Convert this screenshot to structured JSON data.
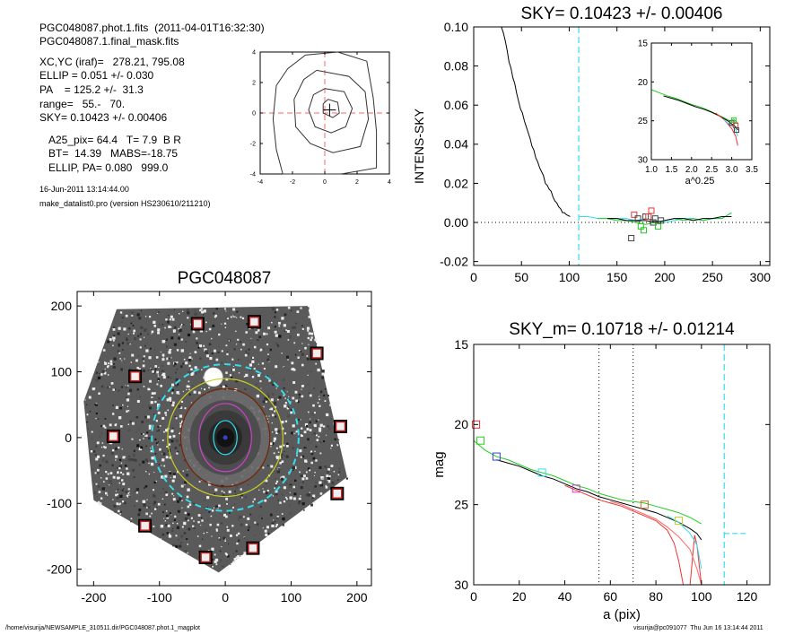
{
  "header": {
    "file_line": "PGC048087.phot.1.fits  (2011-04-01T16:32:30)",
    "mask_line": "PGC048087.1.final_mask.fits",
    "xcyc": "XC,YC (iraf)=   278.21, 795.08",
    "ellip": "ELLIP = 0.051 +/- 0.030",
    "pa": "PA    = 125.2 +/-  31.3",
    "range": "range=   55.-   70.",
    "sky": "SKY= 0.10423 +/- 0.00406",
    "a25": "A25_pix= 64.4   T= 7.9  B R",
    "bt": "BT=  14.39   MABS=-18.75",
    "ellip_pa": "ELLIP, PA= 0.080   999.0",
    "date": "16-Jun-2011 13:14:44.00",
    "program": "make_datalist0.pro (version HS230610/211210)"
  },
  "footer": {
    "path": "/home/visurija/NEWSAMPLE_310511.dir/PGC048087.phot.1_magplot",
    "user": "visurija@pc091077  Thu Jun 16 13:14:44 2011"
  },
  "colors": {
    "black": "#000000",
    "cyan": "#33ddee",
    "green": "#22cc22",
    "red": "#ee3333",
    "pink": "#ff6666",
    "magenta": "#cc44cc",
    "blue": "#3344cc",
    "orange": "#cc6633",
    "yellow": "#cccc22",
    "brown": "#772200",
    "gray": "#444444"
  },
  "chart_data": [
    {
      "id": "contour",
      "type": "contour",
      "xlim": [
        -4,
        4
      ],
      "ylim": [
        -4,
        4
      ],
      "xticks": [
        -4,
        -2,
        0,
        2,
        4
      ],
      "yticks": [
        -4,
        -2,
        0,
        2,
        4
      ],
      "center": [
        0.3,
        0.2
      ],
      "contours": [
        [
          [
            -1.2,
            3.8
          ],
          [
            0.8,
            4.0
          ],
          [
            2.6,
            3.4
          ],
          [
            3.0,
            1.0
          ],
          [
            3.2,
            -1.2
          ],
          [
            3.2,
            -3.6
          ],
          [
            1.0,
            -4.0
          ],
          [
            -2.6,
            -4.0
          ],
          [
            -3.0,
            -2.4
          ],
          [
            -3.2,
            -0.4
          ],
          [
            -3.0,
            1.8
          ],
          [
            -2.3,
            2.9
          ],
          [
            -1.2,
            3.8
          ]
        ],
        [
          [
            -0.5,
            2.8
          ],
          [
            1.5,
            2.4
          ],
          [
            2.5,
            1.4
          ],
          [
            2.7,
            -0.4
          ],
          [
            2.2,
            -2.2
          ],
          [
            0.5,
            -2.6
          ],
          [
            -0.9,
            -2.0
          ],
          [
            -1.8,
            -0.9
          ],
          [
            -1.9,
            0.9
          ],
          [
            -1.3,
            2.2
          ],
          [
            -0.5,
            2.8
          ]
        ],
        [
          [
            0.0,
            1.6
          ],
          [
            1.2,
            1.4
          ],
          [
            1.7,
            0.3
          ],
          [
            1.3,
            -0.9
          ],
          [
            0.4,
            -1.3
          ],
          [
            -0.6,
            -0.9
          ],
          [
            -1.0,
            0.2
          ],
          [
            -0.7,
            1.2
          ],
          [
            0.0,
            1.6
          ]
        ],
        [
          [
            0.2,
            0.9
          ],
          [
            0.8,
            0.7
          ],
          [
            0.9,
            0.0
          ],
          [
            0.5,
            -0.3
          ],
          [
            -0.1,
            0.0
          ],
          [
            -0.1,
            0.6
          ],
          [
            0.2,
            0.9
          ]
        ]
      ]
    },
    {
      "id": "sky",
      "type": "line",
      "title": "SKY= 0.10423 +/- 0.00406",
      "xlabel": "",
      "ylabel": "INTENS-SKY",
      "xlim": [
        0,
        310
      ],
      "ylim": [
        -0.022,
        0.1
      ],
      "xticks": [
        0,
        50,
        100,
        150,
        200,
        250,
        300
      ],
      "yticks": [
        -0.02,
        0.0,
        0.02,
        0.04,
        0.06,
        0.08,
        0.1
      ],
      "ytick_labels": [
        "-0.02",
        "0.00",
        "0.02",
        "0.04",
        "0.06",
        "0.08",
        "0.10"
      ],
      "vline_x": 110,
      "series": [
        {
          "color": "black",
          "x": [
            29,
            31,
            33,
            35,
            37,
            39,
            41,
            43,
            45,
            47,
            49,
            51,
            53,
            55,
            57,
            59,
            61,
            63,
            65,
            67,
            69,
            71,
            73,
            75,
            77,
            79,
            81,
            83,
            85,
            87,
            89,
            91,
            93,
            95,
            97,
            99,
            101
          ],
          "y": [
            0.1,
            0.097,
            0.093,
            0.088,
            0.082,
            0.079,
            0.074,
            0.071,
            0.066,
            0.062,
            0.058,
            0.056,
            0.052,
            0.049,
            0.046,
            0.043,
            0.039,
            0.037,
            0.033,
            0.031,
            0.028,
            0.026,
            0.024,
            0.02,
            0.019,
            0.017,
            0.016,
            0.013,
            0.011,
            0.01,
            0.008,
            0.007,
            0.005,
            0.005,
            0.004,
            0.0035,
            0.003
          ]
        },
        {
          "color": "cyan",
          "x": [
            110,
            120,
            130,
            140,
            150,
            160,
            170,
            180,
            190,
            200,
            210,
            220,
            230,
            240,
            250,
            260,
            270
          ],
          "y": [
            0.003,
            0.003,
            0.002,
            0.002,
            0.002,
            0.002,
            0.001,
            0.002,
            0.001,
            0.0,
            0.001,
            0.002,
            0.002,
            0.001,
            0.002,
            0.002,
            0.005
          ]
        },
        {
          "color": "green",
          "x": [
            130,
            140,
            150,
            160,
            170,
            180,
            190,
            200,
            210,
            220,
            230,
            240,
            250,
            260,
            270
          ],
          "y": [
            0.002,
            0.002,
            0.001,
            0.001,
            0.0,
            -0.001,
            0.0,
            0.001,
            0.002,
            0.001,
            0.002,
            0.001,
            0.002,
            0.002,
            0.005
          ]
        },
        {
          "color": "black",
          "x": [
            140,
            150,
            160,
            170,
            180,
            190,
            200,
            210,
            220,
            230,
            240,
            250,
            260,
            270
          ],
          "y": [
            0.002,
            0.002,
            0.001,
            0.001,
            0.001,
            0.0,
            0.001,
            0.002,
            0.002,
            0.001,
            0.002,
            0.002,
            0.003,
            0.003
          ]
        }
      ],
      "squares": [
        {
          "x": 165,
          "y": -0.008,
          "color": "gray"
        },
        {
          "x": 168,
          "y": 0.004,
          "color": "red"
        },
        {
          "x": 172,
          "y": 0.002,
          "color": "gray"
        },
        {
          "x": 175,
          "y": -0.002,
          "color": "green"
        },
        {
          "x": 178,
          "y": -0.004,
          "color": "green"
        },
        {
          "x": 180,
          "y": 0.003,
          "color": "gray"
        },
        {
          "x": 183,
          "y": 0.003,
          "color": "red"
        },
        {
          "x": 186,
          "y": 0.006,
          "color": "red"
        },
        {
          "x": 188,
          "y": 0.0,
          "color": "gray"
        },
        {
          "x": 190,
          "y": 0.002,
          "color": "gray"
        },
        {
          "x": 193,
          "y": -0.002,
          "color": "green"
        },
        {
          "x": 196,
          "y": 0.001,
          "color": "gray"
        }
      ]
    },
    {
      "id": "inset",
      "type": "line",
      "xlabel": "a^0.25",
      "xlim": [
        1.0,
        3.5
      ],
      "ylim": [
        30,
        15
      ],
      "xticks": [
        1.0,
        1.5,
        2.0,
        2.5,
        3.0,
        3.5
      ],
      "xtick_labels": [
        "1.0",
        "1.5",
        "2.0",
        "2.5",
        "3.0",
        "3.5"
      ],
      "yticks": [
        15,
        20,
        25,
        30
      ],
      "series": [
        {
          "color": "green",
          "x": [
            1.0,
            1.2,
            1.4,
            1.6,
            1.8,
            2.0,
            2.2,
            2.4,
            2.6,
            2.8,
            2.95,
            3.05,
            3.15
          ],
          "y": [
            21.0,
            21.4,
            21.8,
            22.1,
            22.5,
            22.9,
            23.2,
            23.6,
            24.1,
            24.6,
            25.0,
            24.8,
            25.3
          ]
        },
        {
          "color": "black",
          "x": [
            1.3,
            1.5,
            1.7,
            1.9,
            2.1,
            2.3,
            2.5,
            2.7,
            2.9,
            3.0,
            3.1,
            3.15
          ],
          "y": [
            21.8,
            22.1,
            22.4,
            22.8,
            23.2,
            23.5,
            23.9,
            24.4,
            25.0,
            25.4,
            25.8,
            26.2
          ]
        },
        {
          "color": "red",
          "x": [
            2.6,
            2.8,
            2.9,
            3.0,
            3.1,
            3.15
          ],
          "y": [
            24.0,
            24.8,
            25.4,
            26.0,
            27.0,
            28.2
          ]
        },
        {
          "color": "cyan",
          "x": [
            2.8,
            2.9,
            3.0,
            3.1,
            3.15
          ],
          "y": [
            24.8,
            25.3,
            25.6,
            26.2,
            27.0
          ]
        }
      ],
      "squares": [
        {
          "x": 3.0,
          "y": 25.3,
          "color": "gray"
        },
        {
          "x": 3.05,
          "y": 24.9,
          "color": "green"
        },
        {
          "x": 3.1,
          "y": 25.6,
          "color": "red"
        },
        {
          "x": 3.12,
          "y": 26.2,
          "color": "gray"
        }
      ]
    },
    {
      "id": "image",
      "type": "image",
      "title": "PGC048087",
      "xlim": [
        -225,
        222
      ],
      "ylim": [
        -225,
        222
      ],
      "xticks": [
        -200,
        -100,
        0,
        100,
        200
      ],
      "yticks": [
        -200,
        -100,
        0,
        100,
        200
      ],
      "field_corners": [
        [
          -165,
          195
        ],
        [
          125,
          200
        ],
        [
          185,
          -60
        ],
        [
          -10,
          -205
        ],
        [
          -200,
          -95
        ],
        [
          -215,
          55
        ]
      ],
      "ellipses": [
        {
          "rx": 18,
          "ry": 26,
          "color": "cyan"
        },
        {
          "rx": 40,
          "ry": 52,
          "color": "magenta"
        },
        {
          "rx": 68,
          "ry": 75,
          "color": "brown"
        },
        {
          "rx": 88,
          "ry": 90,
          "color": "yellow"
        },
        {
          "rx": 112,
          "ry": 112,
          "color": "cyan",
          "dashed": true
        }
      ],
      "mask_squares": [
        [
          -42,
          173
        ],
        [
          44,
          176
        ],
        [
          -137,
          93
        ],
        [
          139,
          128
        ],
        [
          -170,
          2
        ],
        [
          175,
          17
        ],
        [
          -122,
          -134
        ],
        [
          170,
          -85
        ],
        [
          -30,
          -182
        ],
        [
          42,
          -168
        ]
      ],
      "circle": {
        "x": -18,
        "y": 92,
        "r": 14
      }
    },
    {
      "id": "mag",
      "type": "line",
      "title": "SKY_m=  0.10718 +/- 0.01214",
      "xlabel": "a (pix)",
      "ylabel": "mag",
      "xlim": [
        0,
        130
      ],
      "ylim": [
        30,
        15
      ],
      "xticks": [
        0,
        20,
        40,
        60,
        80,
        100,
        120
      ],
      "yticks": [
        15,
        20,
        25,
        30
      ],
      "vlines_dotted": [
        55,
        70
      ],
      "vline_x": 110,
      "hline_dashed": {
        "x": [
          110,
          120
        ],
        "y": 26.8
      },
      "series": [
        {
          "color": "green",
          "x": [
            0,
            5,
            10,
            15,
            20,
            25,
            30,
            35,
            40,
            45,
            50,
            55,
            60,
            65,
            70,
            75,
            80,
            85,
            90,
            95,
            100
          ],
          "y": [
            21.0,
            21.6,
            22.0,
            22.2,
            22.5,
            22.8,
            23.0,
            23.2,
            23.5,
            23.8,
            24.0,
            24.3,
            24.5,
            24.7,
            24.8,
            24.9,
            25.1,
            25.3,
            25.5,
            25.8,
            26.2
          ]
        },
        {
          "color": "black",
          "x": [
            10,
            15,
            20,
            25,
            30,
            35,
            40,
            45,
            50,
            55,
            60,
            65,
            70,
            75,
            80,
            85,
            90,
            95,
            98,
            100
          ],
          "y": [
            22.2,
            22.4,
            22.6,
            22.9,
            23.2,
            23.4,
            23.7,
            24.0,
            24.2,
            24.5,
            24.7,
            24.9,
            25.1,
            25.3,
            25.5,
            25.8,
            26.1,
            26.5,
            26.8,
            27.2
          ]
        },
        {
          "color": "red",
          "x": [
            40,
            45,
            50,
            55,
            60,
            65,
            70,
            75,
            80,
            85,
            88,
            90,
            92,
            95,
            97,
            98,
            100
          ],
          "y": [
            23.8,
            24.1,
            24.4,
            24.7,
            24.9,
            25.1,
            25.4,
            25.7,
            26.0,
            26.6,
            27.4,
            28.5,
            30.0,
            30.0,
            26.9,
            27.5,
            30.0
          ]
        },
        {
          "color": "pink",
          "x": [
            60,
            65,
            70,
            75,
            80,
            85,
            90,
            95,
            98,
            100
          ],
          "y": [
            24.8,
            25.0,
            25.3,
            25.6,
            25.9,
            26.4,
            27.0,
            27.8,
            29.0,
            30.0
          ]
        },
        {
          "color": "cyan",
          "x": [
            85,
            90,
            95,
            98,
            100
          ],
          "y": [
            25.7,
            26.1,
            26.8,
            27.5,
            29.0
          ]
        }
      ],
      "squares": [
        {
          "x": 1,
          "y": 20.0,
          "color": "red"
        },
        {
          "x": 3,
          "y": 21.0,
          "color": "green"
        },
        {
          "x": 10,
          "y": 22.0,
          "color": "blue"
        },
        {
          "x": 30,
          "y": 23.0,
          "color": "cyan"
        },
        {
          "x": 45,
          "y": 24.0,
          "color": "magenta"
        },
        {
          "x": 75,
          "y": 25.0,
          "color": "orange"
        },
        {
          "x": 90,
          "y": 26.0,
          "color": "yellow"
        }
      ]
    }
  ]
}
